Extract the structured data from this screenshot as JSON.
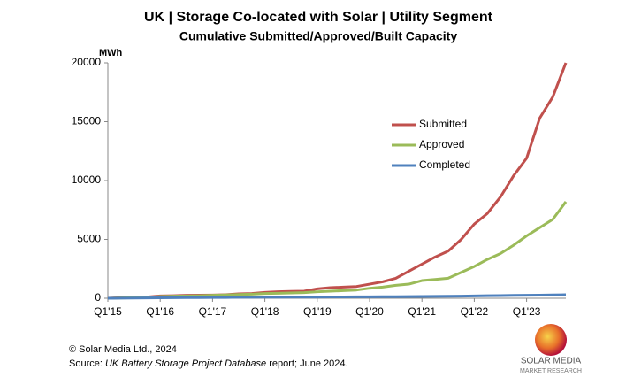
{
  "chart_data": {
    "type": "line",
    "title": "UK | Storage Co-located with Solar | Utility Segment",
    "subtitle": "Cumulative Submitted/Approved/Built Capacity",
    "y_label": "MWh",
    "categories": [
      "Q1'15",
      null,
      null,
      null,
      "Q1'16",
      null,
      null,
      null,
      "Q1'17",
      null,
      null,
      null,
      "Q1'18",
      null,
      null,
      null,
      "Q1'19",
      null,
      null,
      null,
      "Q1'20",
      null,
      null,
      null,
      "Q1'21",
      null,
      null,
      null,
      "Q1'22",
      null,
      null,
      null,
      "Q1'23",
      null,
      null,
      null
    ],
    "series": [
      {
        "name": "Submitted",
        "color": "#c0504d",
        "values": [
          0,
          50,
          80,
          100,
          200,
          220,
          250,
          260,
          270,
          300,
          380,
          400,
          500,
          550,
          580,
          600,
          800,
          900,
          950,
          1000,
          1200,
          1400,
          1700,
          2300,
          2900,
          3500,
          4000,
          5000,
          6300,
          7200,
          8600,
          10400,
          11900,
          15300,
          17100,
          20000
        ]
      },
      {
        "name": "Approved",
        "color": "#9bbb59",
        "values": [
          0,
          30,
          50,
          60,
          150,
          180,
          200,
          220,
          250,
          280,
          320,
          350,
          400,
          420,
          450,
          480,
          550,
          600,
          650,
          700,
          850,
          950,
          1100,
          1200,
          1500,
          1600,
          1700,
          2200,
          2700,
          3300,
          3800,
          4500,
          5300,
          6000,
          6700,
          8200
        ]
      },
      {
        "name": "Completed",
        "color": "#4f81bd",
        "values": [
          0,
          10,
          20,
          30,
          40,
          50,
          60,
          60,
          70,
          70,
          80,
          80,
          90,
          90,
          100,
          100,
          100,
          110,
          110,
          120,
          120,
          130,
          130,
          140,
          150,
          160,
          170,
          180,
          200,
          220,
          230,
          240,
          250,
          260,
          280,
          300
        ]
      }
    ],
    "ylim": [
      0,
      20000
    ],
    "yticks": [
      0,
      5000,
      10000,
      15000,
      20000
    ],
    "grid": false,
    "copyright": "© Solar Media Ltd., 2024",
    "source_prefix": "Source: ",
    "source_italic": "UK Battery Storage Project Database",
    "source_suffix": " report; June 2024.",
    "logo_name": "SOLAR MEDIA",
    "logo_sub": "MARKET RESEARCH"
  }
}
